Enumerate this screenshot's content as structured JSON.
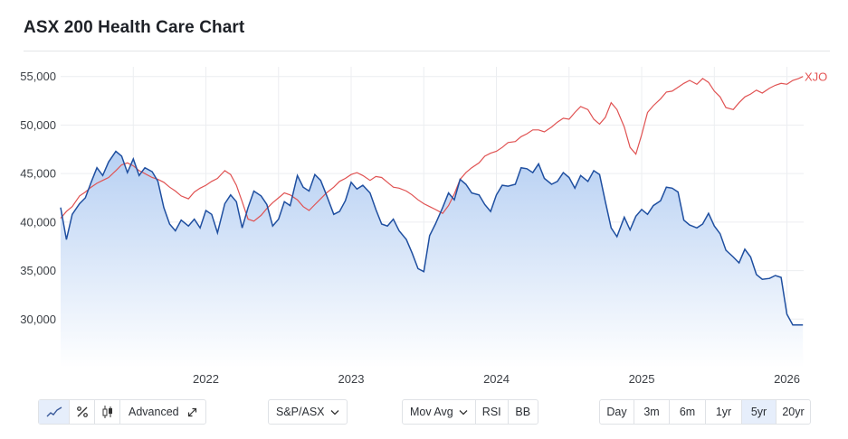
{
  "title": "ASX 200 Health Care Chart",
  "toolbar": {
    "chart_types": [
      {
        "icon": "line-chart-icon",
        "active": true
      },
      {
        "icon": "percent-icon",
        "active": false
      },
      {
        "icon": "candlestick-icon",
        "active": false
      }
    ],
    "advanced_label": "Advanced",
    "advanced_icon": "expand-icon",
    "compare_select": "S&P/ASX",
    "indicator_select": "Mov Avg",
    "rsi_label": "RSI",
    "bb_label": "BB",
    "ranges": [
      "Day",
      "3m",
      "6m",
      "1yr",
      "5yr",
      "20yr"
    ],
    "active_range": "5yr"
  },
  "colors": {
    "main_line": "#1f4fa0",
    "fill_top": "#b7d0f3",
    "fill_bottom": "#ffffff",
    "compare_line": "#e05252",
    "grid": "#eceef1"
  },
  "chart_data": {
    "type": "area",
    "x_ticks": [
      "2022",
      "2023",
      "2024",
      "2025",
      "2026"
    ],
    "y_ticks": [
      "55,000",
      "50,000",
      "45,000",
      "40,000",
      "35,000",
      "30,000"
    ],
    "ylim": [
      25000,
      56000
    ],
    "x_range": [
      "2021-01",
      "2026-02"
    ],
    "compare_label": "XJO",
    "series": [
      {
        "name": "ASX 200 Health Care",
        "x": [
          2021.0,
          2021.04,
          2021.08,
          2021.13,
          2021.17,
          2021.21,
          2021.25,
          2021.29,
          2021.33,
          2021.38,
          2021.42,
          2021.46,
          2021.5,
          2021.54,
          2021.58,
          2021.63,
          2021.67,
          2021.71,
          2021.75,
          2021.79,
          2021.83,
          2021.88,
          2021.92,
          2021.96,
          2022.0,
          2022.04,
          2022.08,
          2022.13,
          2022.17,
          2022.21,
          2022.25,
          2022.29,
          2022.33,
          2022.38,
          2022.42,
          2022.46,
          2022.5,
          2022.54,
          2022.58,
          2022.63,
          2022.67,
          2022.71,
          2022.75,
          2022.79,
          2022.83,
          2022.88,
          2022.92,
          2022.96,
          2023.0,
          2023.04,
          2023.08,
          2023.13,
          2023.17,
          2023.21,
          2023.25,
          2023.29,
          2023.33,
          2023.38,
          2023.42,
          2023.46,
          2023.5,
          2023.54,
          2023.58,
          2023.63,
          2023.67,
          2023.71,
          2023.75,
          2023.79,
          2023.83,
          2023.88,
          2023.92,
          2023.96,
          2024.0,
          2024.04,
          2024.08,
          2024.13,
          2024.17,
          2024.21,
          2024.25,
          2024.29,
          2024.33,
          2024.38,
          2024.42,
          2024.46,
          2024.5,
          2024.54,
          2024.58,
          2024.63,
          2024.67,
          2024.71,
          2024.75,
          2024.79,
          2024.83,
          2024.88,
          2024.92,
          2024.96,
          2025.0,
          2025.04,
          2025.08,
          2025.13,
          2025.17,
          2025.21,
          2025.25,
          2025.29,
          2025.33,
          2025.38,
          2025.42,
          2025.46,
          2025.5,
          2025.54,
          2025.58,
          2025.63,
          2025.67,
          2025.71,
          2025.75,
          2025.79,
          2025.83,
          2025.88,
          2025.92,
          2025.96,
          2026.0,
          2026.04,
          2026.08,
          2026.11
        ],
        "values": [
          41500,
          38200,
          40800,
          41900,
          42500,
          44100,
          45600,
          44800,
          46200,
          47300,
          46800,
          45100,
          46500,
          44800,
          45600,
          45200,
          44200,
          41500,
          39800,
          39100,
          40200,
          39600,
          40300,
          39400,
          41200,
          40800,
          38900,
          41900,
          42800,
          42100,
          39400,
          41500,
          43200,
          42700,
          41800,
          39600,
          40300,
          42100,
          41700,
          44800,
          43600,
          43200,
          44900,
          44300,
          42800,
          40800,
          41100,
          42200,
          44100,
          43400,
          43800,
          43000,
          41300,
          39800,
          39600,
          40300,
          39100,
          38200,
          36800,
          35200,
          34900,
          38600,
          39800,
          41500,
          43000,
          42300,
          44400,
          43900,
          43000,
          42800,
          41800,
          41100,
          42800,
          43800,
          43700,
          43900,
          45600,
          45500,
          45100,
          46000,
          44500,
          43900,
          44200,
          45100,
          44600,
          43500,
          44800,
          44200,
          45300,
          44900,
          42100,
          39400,
          38500,
          40500,
          39200,
          40600,
          41300,
          40800,
          41700,
          42200,
          43600,
          43500,
          43100,
          40200,
          39700,
          39400,
          39800,
          40900,
          39600,
          38800,
          37100,
          36400,
          35800,
          37200,
          36400,
          34600,
          34100,
          34200,
          34500,
          34300,
          30500,
          29400,
          29400,
          29400
        ]
      },
      {
        "name": "XJO",
        "x": [
          2021.0,
          2021.04,
          2021.08,
          2021.13,
          2021.17,
          2021.21,
          2021.25,
          2021.29,
          2021.33,
          2021.38,
          2021.42,
          2021.46,
          2021.5,
          2021.54,
          2021.58,
          2021.63,
          2021.67,
          2021.71,
          2021.75,
          2021.79,
          2021.83,
          2021.88,
          2021.92,
          2021.96,
          2022.0,
          2022.04,
          2022.08,
          2022.13,
          2022.17,
          2022.21,
          2022.25,
          2022.29,
          2022.33,
          2022.38,
          2022.42,
          2022.46,
          2022.5,
          2022.54,
          2022.58,
          2022.63,
          2022.67,
          2022.71,
          2022.75,
          2022.79,
          2022.83,
          2022.88,
          2022.92,
          2022.96,
          2023.0,
          2023.04,
          2023.08,
          2023.13,
          2023.17,
          2023.21,
          2023.25,
          2023.29,
          2023.33,
          2023.38,
          2023.42,
          2023.46,
          2023.5,
          2023.54,
          2023.58,
          2023.63,
          2023.67,
          2023.71,
          2023.75,
          2023.79,
          2023.83,
          2023.88,
          2023.92,
          2023.96,
          2024.0,
          2024.04,
          2024.08,
          2024.13,
          2024.17,
          2024.21,
          2024.25,
          2024.29,
          2024.33,
          2024.38,
          2024.42,
          2024.46,
          2024.5,
          2024.54,
          2024.58,
          2024.63,
          2024.67,
          2024.71,
          2024.75,
          2024.79,
          2024.83,
          2024.88,
          2024.92,
          2024.96,
          2025.0,
          2025.04,
          2025.08,
          2025.13,
          2025.17,
          2025.21,
          2025.25,
          2025.29,
          2025.33,
          2025.38,
          2025.42,
          2025.46,
          2025.5,
          2025.54,
          2025.58,
          2025.63,
          2025.67,
          2025.71,
          2025.75,
          2025.79,
          2025.83,
          2025.88,
          2025.92,
          2025.96,
          2026.0,
          2026.04,
          2026.08,
          2026.11
        ],
        "values": [
          40400,
          41100,
          41600,
          42700,
          43100,
          43600,
          44000,
          44300,
          44600,
          45300,
          45900,
          46100,
          45800,
          45300,
          45000,
          44600,
          44400,
          44100,
          43600,
          43200,
          42700,
          42400,
          43100,
          43500,
          43800,
          44200,
          44500,
          45300,
          44900,
          43800,
          42100,
          40300,
          40100,
          40700,
          41400,
          42000,
          42500,
          43000,
          42800,
          42300,
          41600,
          41200,
          41800,
          42400,
          43000,
          43600,
          44200,
          44500,
          44900,
          45100,
          44800,
          44300,
          44700,
          44600,
          44100,
          43600,
          43500,
          43200,
          42800,
          42300,
          41900,
          41600,
          41300,
          40900,
          41700,
          42900,
          44400,
          45100,
          45600,
          46100,
          46800,
          47100,
          47300,
          47700,
          48200,
          48300,
          48800,
          49100,
          49500,
          49500,
          49300,
          49800,
          50300,
          50700,
          50600,
          51300,
          51900,
          51600,
          50600,
          50100,
          50800,
          52300,
          51600,
          49800,
          47700,
          47000,
          49000,
          51300,
          52000,
          52700,
          53400,
          53500,
          53900,
          54300,
          54600,
          54200,
          54800,
          54400,
          53500,
          52900,
          51800,
          51600,
          52300,
          52900,
          53200,
          53600,
          53300,
          53800,
          54100,
          54300,
          54200,
          54600,
          54800,
          55000
        ]
      }
    ]
  }
}
